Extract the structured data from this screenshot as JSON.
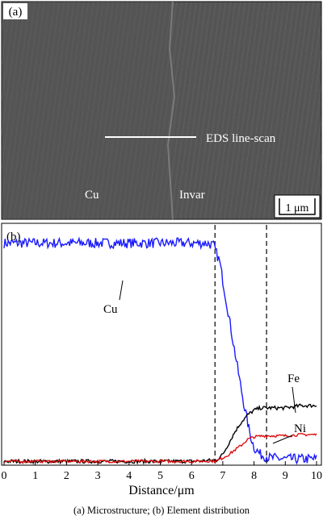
{
  "panel_a": {
    "label": "(a)",
    "annotation": "EDS line-scan",
    "region_left": "Cu",
    "region_right": "Invar",
    "scale_bar": "1 μm"
  },
  "panel_b": {
    "label": "(b)"
  },
  "caption": "(a) Microstructure; (b) Element distribution",
  "chart_data": {
    "type": "line",
    "xlabel": "Distance/μm",
    "ylabel": "",
    "xlim": [
      0,
      10
    ],
    "ylim": [
      0,
      1
    ],
    "xticks": [
      "0",
      "1",
      "2",
      "3",
      "4",
      "5",
      "6",
      "7",
      "8",
      "9",
      "10"
    ],
    "grid": false,
    "legend": "inline labels",
    "boundaries": [
      6.75,
      8.4
    ],
    "series": [
      {
        "name": "Cu",
        "color": "#1a1aff",
        "x": [
          0,
          1,
          2,
          3,
          4,
          5,
          6,
          6.5,
          6.7,
          6.9,
          7.1,
          7.3,
          7.5,
          7.7,
          7.85,
          8.0,
          8.2,
          8.5,
          9,
          9.5,
          10
        ],
        "y": [
          0.96,
          0.96,
          0.96,
          0.96,
          0.96,
          0.96,
          0.96,
          0.96,
          0.95,
          0.88,
          0.72,
          0.56,
          0.4,
          0.25,
          0.15,
          0.08,
          0.05,
          0.035,
          0.03,
          0.03,
          0.03
        ]
      },
      {
        "name": "Fe",
        "color": "#000000",
        "x": [
          0,
          1,
          2,
          3,
          4,
          5,
          6,
          6.8,
          7.0,
          7.2,
          7.4,
          7.6,
          7.8,
          8.0,
          8.2,
          8.5,
          9,
          9.5,
          10
        ],
        "y": [
          0.02,
          0.02,
          0.02,
          0.02,
          0.02,
          0.02,
          0.02,
          0.025,
          0.05,
          0.1,
          0.15,
          0.19,
          0.22,
          0.24,
          0.25,
          0.25,
          0.25,
          0.26,
          0.26
        ]
      },
      {
        "name": "Ni",
        "color": "#e01010",
        "x": [
          0,
          1,
          2,
          3,
          4,
          5,
          6,
          6.8,
          7.0,
          7.2,
          7.4,
          7.6,
          7.8,
          8.0,
          8.3,
          8.6,
          9,
          9.5,
          10
        ],
        "y": [
          0.02,
          0.02,
          0.02,
          0.02,
          0.02,
          0.02,
          0.02,
          0.022,
          0.035,
          0.05,
          0.07,
          0.09,
          0.115,
          0.125,
          0.13,
          0.13,
          0.13,
          0.135,
          0.135
        ]
      }
    ]
  }
}
